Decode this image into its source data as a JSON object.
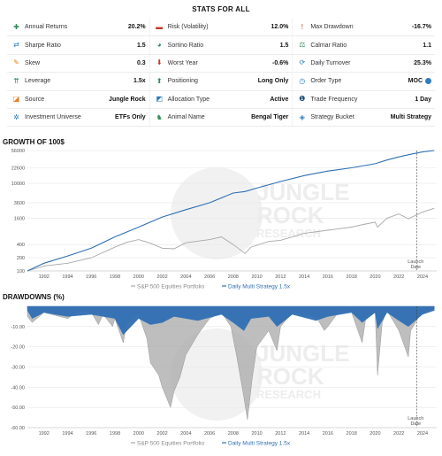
{
  "stats": {
    "title": "STATS FOR ALL",
    "rows": [
      [
        {
          "label": "Annual Returns",
          "value": "20.2%",
          "icon": "plus-icon",
          "glyph": "✚",
          "color": "#2e8b57"
        },
        {
          "label": "Risk (Volatility)",
          "value": "12.0%",
          "icon": "minus-icon",
          "glyph": "▬",
          "color": "#c0392b"
        },
        {
          "label": "Max Drawdown",
          "value": "-16.7%",
          "icon": "exclamation-icon",
          "glyph": "!",
          "color": "#c0392b"
        }
      ],
      [
        {
          "label": "Sharpe Ratio",
          "value": "1.5",
          "icon": "ratio-arrows-icon",
          "glyph": "⇄",
          "color": "#2e7dbd"
        },
        {
          "label": "Sortino Ratio",
          "value": "1.5",
          "icon": "gauge-icon",
          "glyph": "◕",
          "color": "#2e8b57"
        },
        {
          "label": "Calmar Ratio",
          "value": "1.1",
          "icon": "scale-icon",
          "glyph": "⚖",
          "color": "#2e8b57"
        }
      ],
      [
        {
          "label": "Skew",
          "value": "0.3",
          "icon": "pencil-icon",
          "glyph": "✎",
          "color": "#e67e22"
        },
        {
          "label": "Worst Year",
          "value": "-0.6%",
          "icon": "arrow-down-icon",
          "glyph": "⬇",
          "color": "#c0392b"
        },
        {
          "label": "Daily Turnover",
          "value": "25.3%",
          "icon": "refresh-icon",
          "glyph": "⟳",
          "color": "#2e7dbd"
        }
      ],
      [
        {
          "label": "Leverage",
          "value": "1.5x",
          "icon": "chevrons-up-icon",
          "glyph": "⇈",
          "color": "#2e8b57"
        },
        {
          "label": "Positioning",
          "value": "Long Only",
          "icon": "arrow-up-icon",
          "glyph": "⬆",
          "color": "#2e8b57"
        },
        {
          "label": "Order Type",
          "value": "MOC",
          "icon": "clock-icon",
          "glyph": "◷",
          "color": "#2e7dbd"
        }
      ],
      [
        {
          "label": "Source",
          "value": "Jungle Rock",
          "icon": "source-icon",
          "glyph": "◪",
          "color": "#e67e22"
        },
        {
          "label": "Allocation Type",
          "value": "Active",
          "icon": "allocation-icon",
          "glyph": "◩",
          "color": "#2e7dbd"
        },
        {
          "label": "Trade Frequency",
          "value": "1 Day",
          "icon": "calendar-icon",
          "glyph": "❶",
          "color": "#1f4e79"
        }
      ],
      [
        {
          "label": "Investment Universe",
          "value": "ETFs Only",
          "icon": "globe-icon",
          "glyph": "✲",
          "color": "#2e7dbd"
        },
        {
          "label": "Animal Name",
          "value": "Bengal Tiger",
          "icon": "tiger-icon",
          "glyph": "♞",
          "color": "#2e8b57"
        },
        {
          "label": "Strategy Bucket",
          "value": "Multi Strategy",
          "icon": "bucket-icon",
          "glyph": "◈",
          "color": "#2e7dbd"
        }
      ]
    ],
    "order_type_extra_icon": "info-icon"
  },
  "watermark": {
    "line1": "JUNGLE",
    "line2": "ROCK",
    "line3": "RESEARCH"
  },
  "chart_data": [
    {
      "type": "line",
      "title": "GROWTH OF 100$",
      "yscale": "log",
      "ylim": [
        100,
        56000
      ],
      "yticks": [
        100,
        200,
        400,
        1600,
        3600,
        10000,
        22600,
        56000
      ],
      "ytick_labels": [
        "100",
        "200",
        "400",
        "1600",
        "3600",
        "10000",
        "22600",
        "56000"
      ],
      "xlim": [
        1990.6,
        2025.2
      ],
      "xticks": [
        1992,
        1994,
        1996,
        1998,
        2000,
        2002,
        2004,
        2006,
        2008,
        2010,
        2012,
        2014,
        2016,
        2018,
        2020,
        2022,
        2024
      ],
      "annotation": {
        "text_line1": "Launch",
        "text_line2": "Date",
        "x": 2023.5
      },
      "series": [
        {
          "name": "S&P 500 Equities Portfolio",
          "color": "#a8a8a8",
          "x": [
            1990.6,
            1992,
            1994,
            1996,
            1998,
            1999,
            2000,
            2001,
            2002,
            2003,
            2004,
            2006,
            2007,
            2008,
            2009,
            2009.5,
            2011,
            2012,
            2014,
            2016,
            2018,
            2019,
            2020,
            2020.2,
            2021,
            2022,
            2022.8,
            2024,
            2025
          ],
          "values": [
            100,
            130,
            150,
            200,
            350,
            450,
            520,
            430,
            330,
            320,
            440,
            520,
            600,
            400,
            250,
            350,
            470,
            500,
            720,
            850,
            1000,
            1150,
            1300,
            1000,
            1600,
            2000,
            1550,
            2200,
            2700
          ]
        },
        {
          "name": "Daily Multi Strategy 1.5x",
          "color": "#2f6fb3",
          "x": [
            1990.6,
            1992,
            1994,
            1996,
            1998,
            2000,
            2002,
            2004,
            2006,
            2008,
            2009,
            2010,
            2012,
            2014,
            2016,
            2018,
            2020,
            2021,
            2022,
            2023,
            2024,
            2025
          ],
          "values": [
            100,
            150,
            220,
            330,
            600,
            1000,
            1700,
            2500,
            3600,
            6000,
            6500,
            7800,
            11000,
            15000,
            19000,
            22600,
            28000,
            34000,
            40000,
            46000,
            52000,
            56000
          ]
        }
      ]
    },
    {
      "type": "area",
      "title": "DRAWDOWNS (%)",
      "ylim": [
        -60,
        0
      ],
      "yticks": [
        -10,
        -20,
        -30,
        -40,
        -50,
        -60
      ],
      "ytick_labels": [
        "-10.00",
        "-20.00",
        "-30.00",
        "-40.00",
        "-50.00",
        "-60.00"
      ],
      "xlim": [
        1990.6,
        2025.2
      ],
      "xticks": [
        1992,
        1994,
        1996,
        1998,
        2000,
        2002,
        2004,
        2006,
        2008,
        2010,
        2012,
        2014,
        2016,
        2018,
        2020,
        2022,
        2024
      ],
      "annotation": {
        "text_line1": "Launch",
        "text_line2": "Date",
        "x": 2023.5
      },
      "series": [
        {
          "name": "S&P 500 Equities Portfolio",
          "color": "#a8a8a8",
          "x": [
            1990.6,
            1991,
            1992,
            1994,
            1995,
            1996,
            1996.6,
            1997,
            1997.8,
            1998,
            1998.7,
            1999,
            2000,
            2000.7,
            2001,
            2001.7,
            2002,
            2002.7,
            2003,
            2003.5,
            2004,
            2005,
            2006,
            2007,
            2007.8,
            2008.3,
            2008.9,
            2009.2,
            2009.6,
            2010,
            2010.5,
            2011,
            2011.7,
            2012,
            2013,
            2014,
            2015,
            2015.7,
            2016,
            2017,
            2018,
            2018.9,
            2019.2,
            2020,
            2020.2,
            2020.6,
            2021,
            2022,
            2022.8,
            2023,
            2023.6,
            2024,
            2025
          ],
          "values": [
            -5,
            -8,
            -3,
            -6,
            -2,
            -3,
            -9,
            -4,
            -10,
            -6,
            -18,
            -8,
            -4,
            -16,
            -28,
            -34,
            -40,
            -50,
            -42,
            -35,
            -24,
            -14,
            -6,
            -3,
            -10,
            -25,
            -45,
            -56,
            -36,
            -20,
            -16,
            -12,
            -22,
            -10,
            -3,
            -4,
            -5,
            -12,
            -10,
            -2,
            -3,
            -18,
            -6,
            -3,
            -34,
            -8,
            -2,
            -12,
            -25,
            -12,
            -6,
            -3,
            -1
          ]
        },
        {
          "name": "Daily Multi Strategy 1.5x",
          "color": "#2f6fb3",
          "x": [
            1990.6,
            1991,
            1992,
            1994,
            1996,
            1998,
            1998.7,
            2000,
            2001,
            2002,
            2003,
            2005,
            2007,
            2008,
            2008.9,
            2009.5,
            2011,
            2011.7,
            2013,
            2015,
            2016,
            2018,
            2018.9,
            2020,
            2020.2,
            2021,
            2022,
            2022.8,
            2024,
            2025
          ],
          "values": [
            -2,
            -6,
            -3,
            -5,
            -4,
            -6,
            -14,
            -6,
            -9,
            -8,
            -5,
            -7,
            -4,
            -8,
            -12,
            -6,
            -5,
            -10,
            -4,
            -7,
            -5,
            -3,
            -8,
            -3,
            -11,
            -3,
            -7,
            -10,
            -4,
            -2
          ]
        }
      ]
    }
  ]
}
